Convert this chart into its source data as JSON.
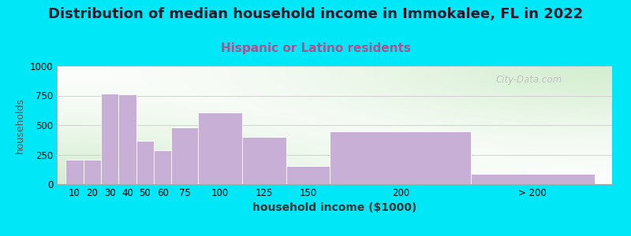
{
  "title": "Distribution of median household income in Immokalee, FL in 2022",
  "subtitle": "Hispanic or Latino residents",
  "xlabel": "household income ($1000)",
  "ylabel": "households",
  "watermark": "City-Data.com",
  "categories": [
    "10",
    "20",
    "30",
    "40",
    "50",
    "60",
    "75",
    "100",
    "125",
    "150",
    "200",
    "> 200"
  ],
  "values": [
    210,
    210,
    770,
    760,
    370,
    290,
    480,
    610,
    400,
    155,
    445,
    90
  ],
  "bar_color": "#c8afd6",
  "bar_edgecolor": "#ffffff",
  "background_outer": "#00e8f8",
  "title_fontsize": 13,
  "subtitle_fontsize": 11,
  "subtitle_color": "#b05090",
  "ylabel_fontsize": 9,
  "xlabel_fontsize": 10,
  "ylim": [
    0,
    1000
  ],
  "yticks": [
    0,
    250,
    500,
    750,
    1000
  ],
  "grid_color": "#cccccc",
  "watermark_color": "#bbbbbb",
  "left_edges": [
    0,
    10,
    20,
    30,
    40,
    50,
    60,
    75,
    100,
    125,
    150,
    230
  ],
  "widths": [
    10,
    10,
    10,
    10,
    10,
    10,
    15,
    25,
    25,
    25,
    80,
    70
  ]
}
